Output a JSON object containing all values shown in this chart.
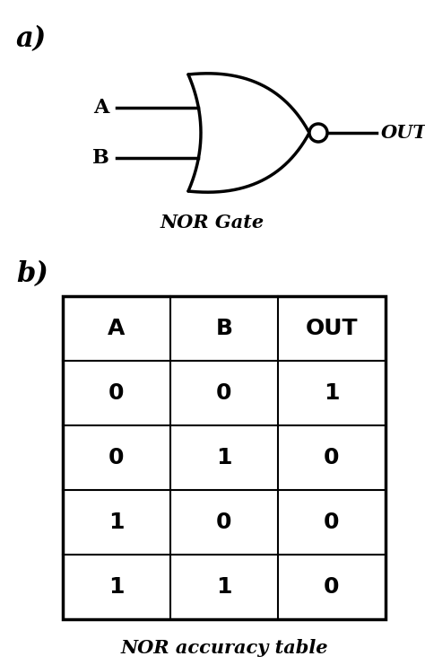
{
  "title_a": "a)",
  "title_b": "b)",
  "label_A": "A",
  "label_B": "B",
  "label_OUT": "OUT",
  "gate_label": "NOR Gate",
  "table_label": "NOR accuracy table",
  "table_headers": [
    "A",
    "B",
    "OUT"
  ],
  "table_data": [
    [
      "0",
      "0",
      "1"
    ],
    [
      "0",
      "1",
      "0"
    ],
    [
      "1",
      "0",
      "0"
    ],
    [
      "1",
      "1",
      "0"
    ]
  ],
  "bg_color": "#ffffff",
  "text_color": "#000000",
  "line_color": "#000000",
  "line_width": 2.2,
  "gate_lw": 2.5
}
